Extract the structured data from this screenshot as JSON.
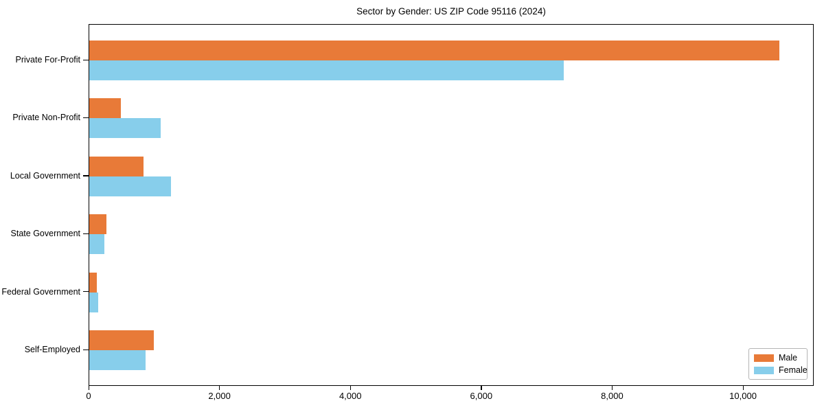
{
  "chart_data": {
    "type": "bar",
    "orientation": "horizontal",
    "title": "Sector by Gender: US ZIP Code 95116 (2024)",
    "categories": [
      "Private For-Profit",
      "Private Non-Profit",
      "Local Government",
      "State Government",
      "Federal Government",
      "Self-Employed"
    ],
    "series": [
      {
        "name": "Male",
        "color": "#E87A38",
        "values": [
          10550,
          480,
          825,
          260,
          120,
          990
        ]
      },
      {
        "name": "Female",
        "color": "#87CEEB",
        "values": [
          7250,
          1090,
          1245,
          230,
          135,
          860
        ]
      }
    ],
    "xlabel": "",
    "ylabel": "",
    "xlim": [
      0,
      11080
    ],
    "xticks": [
      0,
      2000,
      4000,
      6000,
      8000,
      10000
    ],
    "xtick_labels": [
      "0",
      "2,000",
      "4,000",
      "6,000",
      "8,000",
      "10,000"
    ],
    "grid": false,
    "legend": {
      "position": "lower right"
    },
    "colors": {
      "axis": "#000000",
      "background": "#ffffff",
      "legend_border": "#b4b4b4"
    }
  }
}
